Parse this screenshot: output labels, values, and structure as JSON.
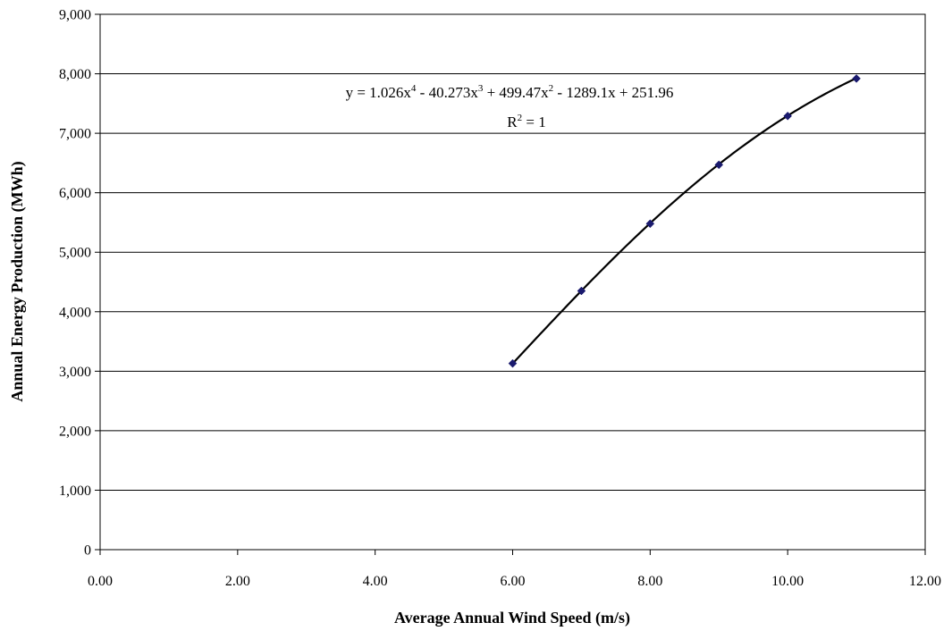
{
  "chart_data": {
    "type": "scatter",
    "title": "",
    "xlabel": "Average Annual Wind Speed (m/s)",
    "ylabel": "Annual Energy Production (MWh)",
    "xlim": [
      0,
      12
    ],
    "ylim": [
      0,
      9000
    ],
    "x_ticks": [
      "0.00",
      "2.00",
      "4.00",
      "6.00",
      "8.00",
      "10.00",
      "12.00"
    ],
    "y_ticks": [
      "0",
      "1,000",
      "2,000",
      "3,000",
      "4,000",
      "5,000",
      "6,000",
      "7,000",
      "8,000",
      "9,000"
    ],
    "grid": "horizontal",
    "series": [
      {
        "x": [
          6,
          7,
          8,
          9,
          10,
          11
        ],
        "y": [
          3130,
          4350,
          5480,
          6470,
          7290,
          7920
        ],
        "marker": "diamond",
        "color": "#1a1a6e",
        "trendline": {
          "type": "polynomial",
          "order": 4,
          "coefficients": [
            1.026,
            -40.273,
            499.47,
            -1289.1,
            251.96
          ],
          "color": "#000000"
        }
      }
    ],
    "annotations": {
      "equation": {
        "parts": [
          "y = 1.026x",
          "4",
          " - 40.273x",
          "3",
          " + 499.47x",
          "2",
          " - 1289.1x + 251.96"
        ]
      },
      "r_squared": {
        "parts": [
          "R",
          "2",
          " = 1"
        ]
      }
    }
  }
}
